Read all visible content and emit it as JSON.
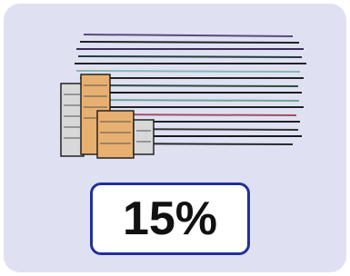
{
  "label": "15%"
}
